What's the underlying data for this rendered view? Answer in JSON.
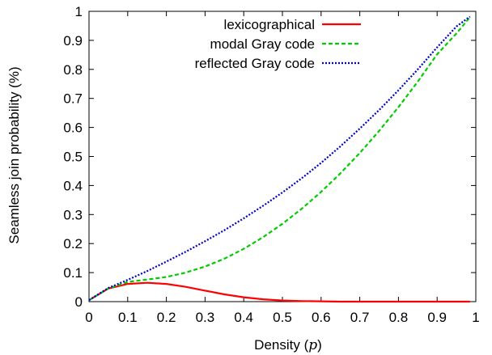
{
  "chart_data": {
    "type": "line",
    "xlabel": "Density (",
    "xlabel_var": "p",
    "xlabel_close": ")",
    "ylabel": "Seamless join probability (%)",
    "xlim": [
      0,
      1
    ],
    "ylim": [
      0,
      1
    ],
    "x_ticks": [
      "0",
      "0.1",
      "0.2",
      "0.3",
      "0.4",
      "0.5",
      "0.6",
      "0.7",
      "0.8",
      "0.9",
      "1"
    ],
    "y_ticks": [
      "0",
      "0.1",
      "0.2",
      "0.3",
      "0.4",
      "0.5",
      "0.6",
      "0.7",
      "0.8",
      "0.9",
      "1"
    ],
    "grid": false,
    "legend_position": "top-right",
    "x": [
      0,
      0.05,
      0.1,
      0.15,
      0.2,
      0.25,
      0.3,
      0.35,
      0.4,
      0.45,
      0.5,
      0.55,
      0.6,
      0.65,
      0.7,
      0.75,
      0.8,
      0.85,
      0.9,
      0.95,
      0.985
    ],
    "series": [
      {
        "name": "lexicographical",
        "color": "#ff0000",
        "style": "solid",
        "values": [
          0.005,
          0.045,
          0.061,
          0.065,
          0.061,
          0.051,
          0.038,
          0.025,
          0.015,
          0.008,
          0.004,
          0.002,
          0.001,
          0,
          0,
          0,
          0,
          0,
          0,
          0,
          0
        ]
      },
      {
        "name": "modal Gray code",
        "color": "#00cc00",
        "style": "dashed",
        "values": [
          0.005,
          0.045,
          0.068,
          0.076,
          0.085,
          0.1,
          0.121,
          0.148,
          0.182,
          0.222,
          0.268,
          0.32,
          0.378,
          0.442,
          0.512,
          0.588,
          0.67,
          0.758,
          0.852,
          0.924,
          0.98
        ]
      },
      {
        "name": "reflected  Gray code",
        "color": "#0000cc",
        "style": "dotted",
        "values": [
          0.005,
          0.047,
          0.075,
          0.105,
          0.138,
          0.172,
          0.208,
          0.246,
          0.287,
          0.33,
          0.376,
          0.425,
          0.478,
          0.535,
          0.596,
          0.66,
          0.728,
          0.8,
          0.876,
          0.948,
          0.982
        ]
      }
    ]
  }
}
